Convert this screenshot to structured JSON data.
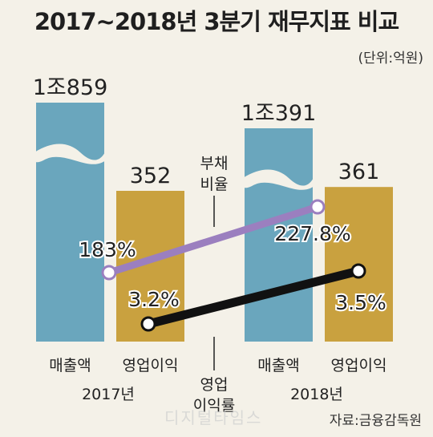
{
  "title": "2017~2018년 3분기 재무지표 비교",
  "unit": "(단위:억원)",
  "source": "자료:금융감독원",
  "watermark": "디지털타임스",
  "colors": {
    "revenue": "#6aa6bd",
    "operating_profit": "#c9a13f",
    "debt_ratio_line": "#9b7fbf",
    "margin_line": "#111111",
    "background": "#f4f1e8"
  },
  "chart_data": [
    {
      "type": "bar",
      "title": "",
      "groups": [
        "2017년",
        "2018년"
      ],
      "categories": [
        "매출액",
        "영업이익"
      ],
      "series": [
        {
          "name": "매출액",
          "values": [
            10859,
            10391
          ],
          "labels": [
            "1조859",
            "1조391"
          ],
          "broken_axis": true
        },
        {
          "name": "영업이익",
          "values": [
            352,
            361
          ],
          "labels": [
            "352",
            "361"
          ]
        }
      ]
    },
    {
      "type": "line",
      "name": "부채비율",
      "label_lines": [
        "부채",
        "비율"
      ],
      "x": [
        "2017년",
        "2018년"
      ],
      "values": [
        183,
        227.8
      ],
      "labels": [
        "183%",
        "227.8%"
      ]
    },
    {
      "type": "line",
      "name": "영업이익률",
      "label_lines": [
        "영업",
        "이익률"
      ],
      "x": [
        "2017년",
        "2018년"
      ],
      "values": [
        3.2,
        3.5
      ],
      "labels": [
        "3.2%",
        "3.5%"
      ]
    }
  ]
}
